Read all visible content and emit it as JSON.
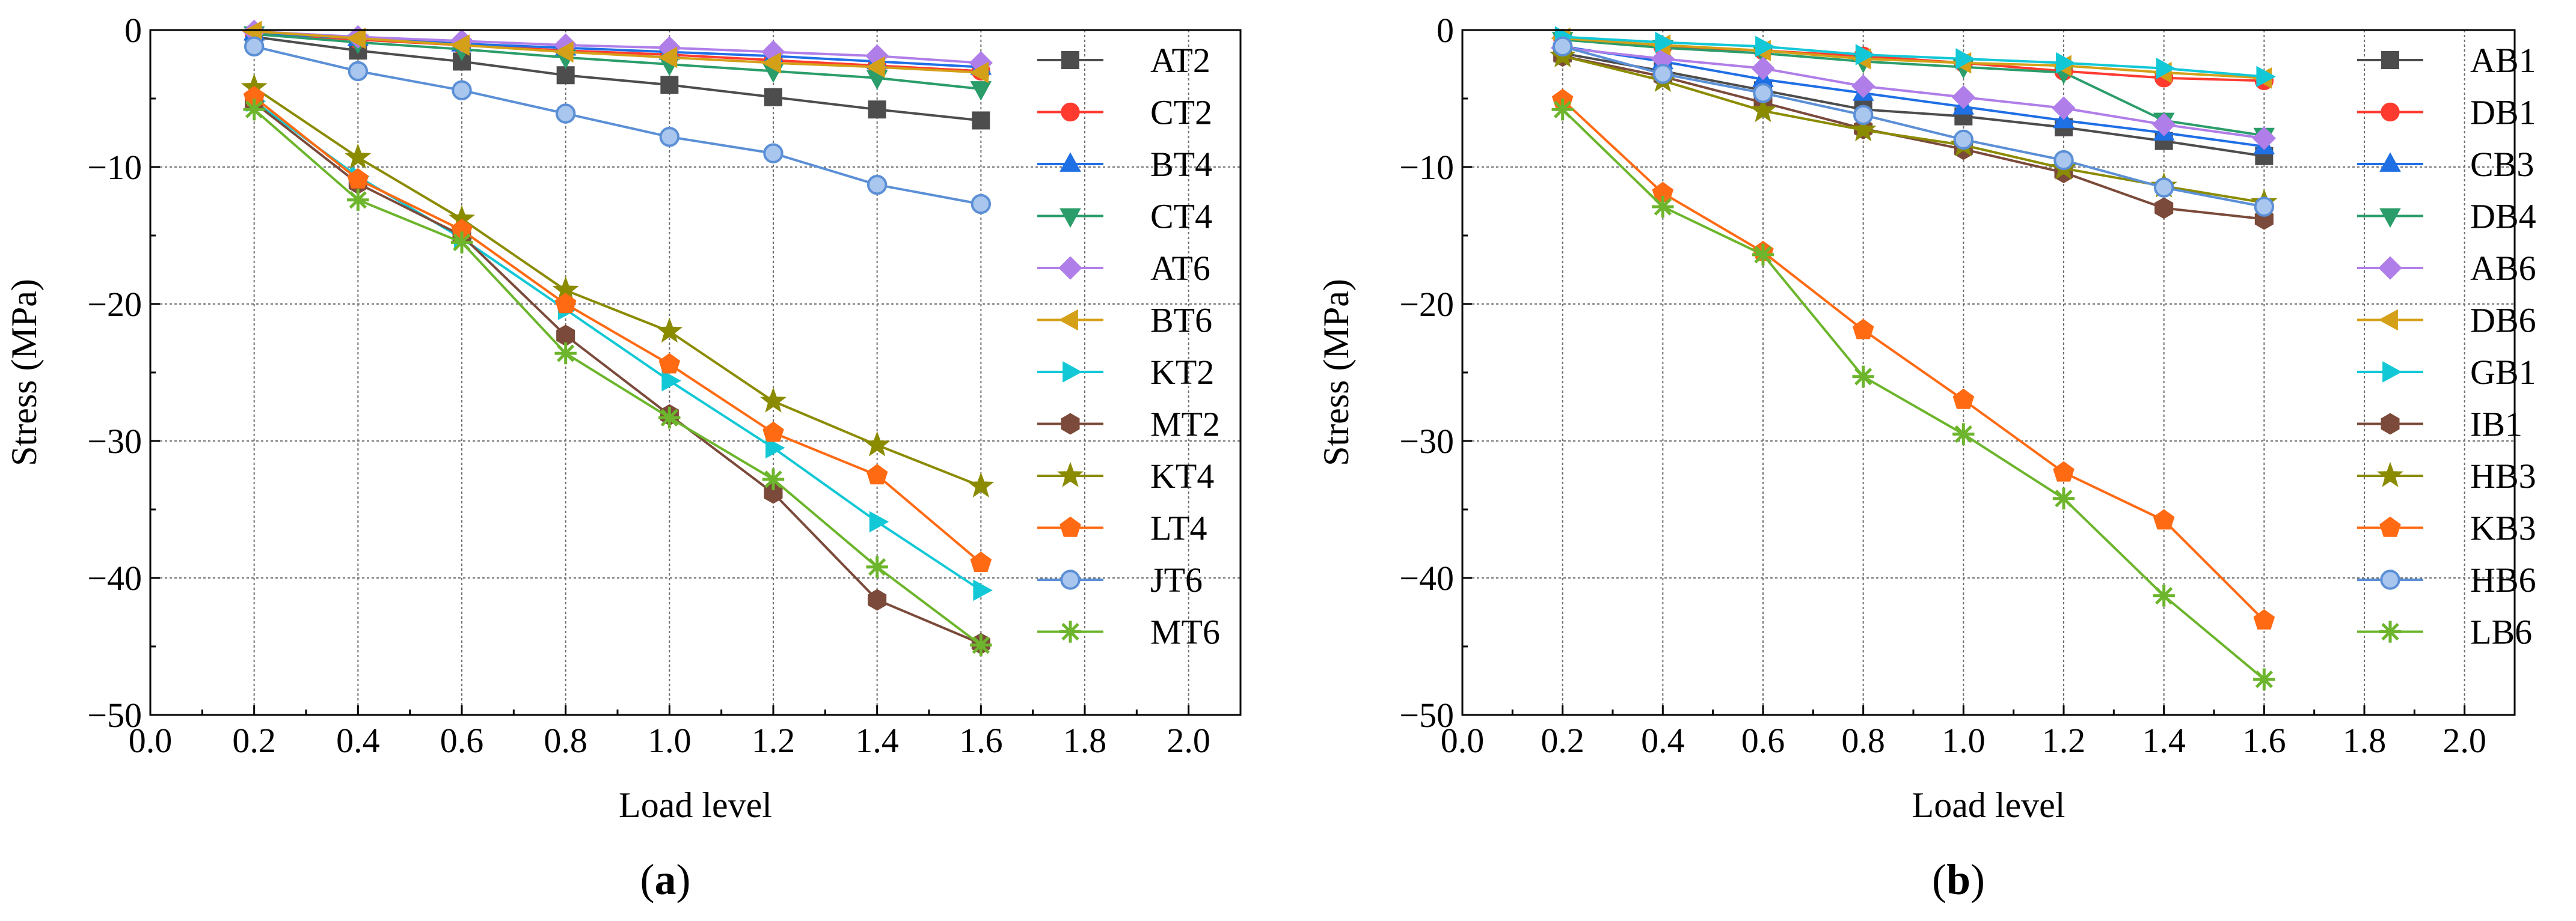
{
  "chart_data": [
    {
      "type": "line",
      "panel_label": "a",
      "xlabel": "Load level",
      "ylabel": "Stress (MPa)",
      "xlim": [
        0.0,
        2.1
      ],
      "ylim": [
        -50,
        0
      ],
      "xticks": [
        0.0,
        0.2,
        0.4,
        0.6,
        0.8,
        1.0,
        1.2,
        1.4,
        1.6,
        1.8,
        2.0
      ],
      "xtick_labels": [
        "0.0",
        "0.2",
        "0.4",
        "0.6",
        "0.8",
        "1.0",
        "1.2",
        "1.4",
        "1.6",
        "1.8",
        "2.0"
      ],
      "yticks": [
        0,
        -10,
        -20,
        -30,
        -40,
        -50
      ],
      "ytick_labels": [
        "0",
        "−10",
        "−20",
        "−30",
        "−40",
        "−50"
      ],
      "grid": true,
      "legend_position": "right",
      "x": [
        0.2,
        0.4,
        0.6,
        0.8,
        1.0,
        1.2,
        1.4,
        1.6
      ],
      "series": [
        {
          "name": "AT2",
          "color": "#4d4d4d",
          "marker": "square",
          "values": [
            -0.5,
            -1.5,
            -2.3,
            -3.3,
            -4.0,
            -4.9,
            -5.8,
            -6.6
          ]
        },
        {
          "name": "CT2",
          "color": "#ff3b30",
          "marker": "circle",
          "values": [
            -0.2,
            -0.7,
            -1.1,
            -1.5,
            -1.8,
            -2.2,
            -2.6,
            -3.0
          ]
        },
        {
          "name": "BT4",
          "color": "#1f6fe5",
          "marker": "triangle-up",
          "values": [
            -0.2,
            -0.6,
            -1.0,
            -1.3,
            -1.6,
            -1.9,
            -2.3,
            -2.7
          ]
        },
        {
          "name": "CT4",
          "color": "#2a9d6a",
          "marker": "triangle-down",
          "values": [
            -0.3,
            -0.9,
            -1.4,
            -2.0,
            -2.5,
            -3.0,
            -3.5,
            -4.3
          ]
        },
        {
          "name": "AT6",
          "color": "#b07ee8",
          "marker": "diamond",
          "values": [
            -0.1,
            -0.5,
            -0.8,
            -1.1,
            -1.3,
            -1.6,
            -1.9,
            -2.4
          ]
        },
        {
          "name": "BT6",
          "color": "#d4a017",
          "marker": "triangle-left",
          "values": [
            -0.1,
            -0.6,
            -1.1,
            -1.6,
            -2.0,
            -2.4,
            -2.7,
            -3.1
          ]
        },
        {
          "name": "KT2",
          "color": "#12c8d6",
          "marker": "triangle-right",
          "values": [
            -5.2,
            -10.7,
            -15.2,
            -20.4,
            -25.6,
            -30.5,
            -35.9,
            -40.9
          ]
        },
        {
          "name": "MT2",
          "color": "#7b4a3a",
          "marker": "hexagon",
          "values": [
            -5.3,
            -11.2,
            -15.0,
            -22.3,
            -28.1,
            -33.8,
            -41.6,
            -44.8
          ]
        },
        {
          "name": "KT4",
          "color": "#8b8b00",
          "marker": "star",
          "values": [
            -4.2,
            -9.3,
            -13.8,
            -19.0,
            -22.0,
            -27.1,
            -30.3,
            -33.3
          ]
        },
        {
          "name": "LT4",
          "color": "#ff6a13",
          "marker": "pentagon",
          "values": [
            -4.9,
            -10.9,
            -14.6,
            -20.0,
            -24.4,
            -29.4,
            -32.5,
            -38.9
          ]
        },
        {
          "name": "JT6",
          "color": "#5b8fd6",
          "marker": "circle-ring",
          "values": [
            -1.2,
            -3.0,
            -4.4,
            -6.1,
            -7.8,
            -9.0,
            -11.3,
            -12.7
          ]
        },
        {
          "name": "MT6",
          "color": "#6cb52c",
          "marker": "asterisk",
          "values": [
            -5.8,
            -12.4,
            -15.5,
            -23.6,
            -28.3,
            -32.8,
            -39.2,
            -44.9
          ]
        }
      ]
    },
    {
      "type": "line",
      "panel_label": "b",
      "xlabel": "Load level",
      "ylabel": "Stress (MPa)",
      "xlim": [
        0.0,
        2.1
      ],
      "ylim": [
        -50,
        0
      ],
      "xticks": [
        0.0,
        0.2,
        0.4,
        0.6,
        0.8,
        1.0,
        1.2,
        1.4,
        1.6,
        1.8,
        2.0
      ],
      "xtick_labels": [
        "0.0",
        "0.2",
        "0.4",
        "0.6",
        "0.8",
        "1.0",
        "1.2",
        "1.4",
        "1.6",
        "1.8",
        "2.0"
      ],
      "yticks": [
        0,
        -10,
        -20,
        -30,
        -40,
        -50
      ],
      "ytick_labels": [
        "0",
        "−10",
        "−20",
        "−30",
        "−40",
        "−50"
      ],
      "grid": true,
      "legend_position": "right",
      "x": [
        0.2,
        0.4,
        0.6,
        0.8,
        1.0,
        1.2,
        1.4,
        1.6
      ],
      "series": [
        {
          "name": "AB1",
          "color": "#4d4d4d",
          "marker": "square",
          "values": [
            -1.7,
            -3.0,
            -4.4,
            -5.8,
            -6.3,
            -7.1,
            -8.1,
            -9.2
          ]
        },
        {
          "name": "DB1",
          "color": "#ff3b30",
          "marker": "circle",
          "values": [
            -0.6,
            -1.2,
            -1.5,
            -1.9,
            -2.4,
            -3.0,
            -3.5,
            -3.7
          ]
        },
        {
          "name": "CB3",
          "color": "#1f6fe5",
          "marker": "triangle-up",
          "values": [
            -1.2,
            -2.3,
            -3.6,
            -4.6,
            -5.6,
            -6.6,
            -7.5,
            -8.5
          ]
        },
        {
          "name": "DB4",
          "color": "#2a9d6a",
          "marker": "triangle-down",
          "values": [
            -0.7,
            -1.3,
            -1.7,
            -2.3,
            -2.7,
            -3.1,
            -6.6,
            -7.7
          ]
        },
        {
          "name": "AB6",
          "color": "#b07ee8",
          "marker": "diamond",
          "values": [
            -1.3,
            -2.1,
            -2.8,
            -4.1,
            -4.9,
            -5.7,
            -6.9,
            -7.9
          ]
        },
        {
          "name": "DB6",
          "color": "#d4a017",
          "marker": "triangle-left",
          "values": [
            -0.6,
            -1.1,
            -1.5,
            -2.1,
            -2.4,
            -2.6,
            -3.1,
            -3.5
          ]
        },
        {
          "name": "GB1",
          "color": "#12c8d6",
          "marker": "triangle-right",
          "values": [
            -0.5,
            -0.9,
            -1.2,
            -1.8,
            -2.1,
            -2.4,
            -2.8,
            -3.4
          ]
        },
        {
          "name": "IB1",
          "color": "#7b4a3a",
          "marker": "hexagon",
          "values": [
            -1.9,
            -3.4,
            -5.3,
            -7.2,
            -8.7,
            -10.4,
            -13.0,
            -13.8
          ]
        },
        {
          "name": "HB3",
          "color": "#8b8b00",
          "marker": "star",
          "values": [
            -1.9,
            -3.7,
            -5.9,
            -7.3,
            -8.4,
            -10.1,
            -11.4,
            -12.6
          ]
        },
        {
          "name": "KB3",
          "color": "#ff6a13",
          "marker": "pentagon",
          "values": [
            -5.1,
            -11.9,
            -16.2,
            -21.9,
            -27.0,
            -32.3,
            -35.8,
            -43.1
          ]
        },
        {
          "name": "HB6",
          "color": "#5b8fd6",
          "marker": "circle-ring",
          "values": [
            -1.2,
            -3.2,
            -4.6,
            -6.2,
            -8.0,
            -9.5,
            -11.5,
            -12.9
          ]
        },
        {
          "name": "LB6",
          "color": "#6cb52c",
          "marker": "asterisk",
          "values": [
            -5.8,
            -12.9,
            -16.4,
            -25.3,
            -29.5,
            -34.2,
            -41.3,
            -47.4
          ]
        }
      ]
    }
  ]
}
